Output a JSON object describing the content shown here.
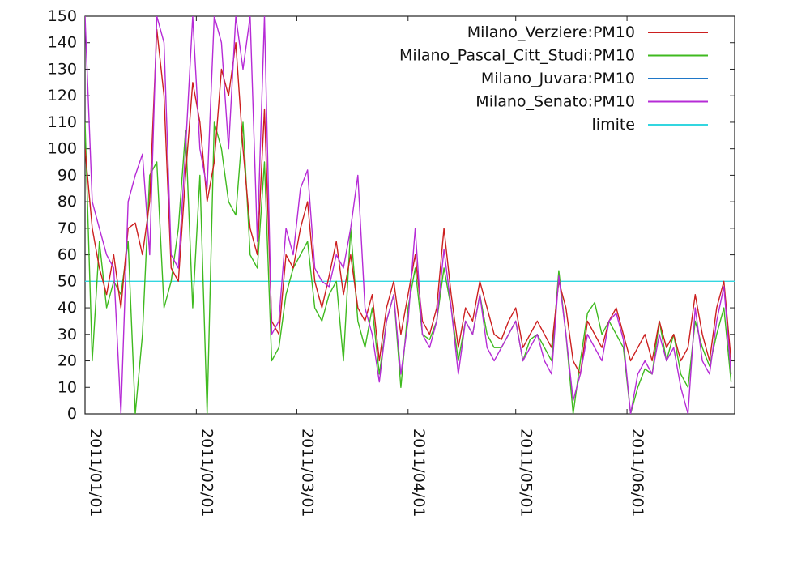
{
  "chart_data": {
    "type": "line",
    "title": "",
    "xlabel": "",
    "ylabel": "",
    "ylim": [
      0,
      150
    ],
    "xlim": [
      "2011-01-01",
      "2011-07-01"
    ],
    "yticks": [
      0,
      10,
      20,
      30,
      40,
      50,
      60,
      70,
      80,
      90,
      100,
      110,
      120,
      130,
      140,
      150
    ],
    "xticks": [
      {
        "date": "2011-01-01",
        "label": "2011/01/01"
      },
      {
        "date": "2011-02-01",
        "label": "2011/02/01"
      },
      {
        "date": "2011-03-01",
        "label": "2011/03/01"
      },
      {
        "date": "2011-04-01",
        "label": "2011/04/01"
      },
      {
        "date": "2011-05-01",
        "label": "2011/05/01"
      },
      {
        "date": "2011-06-01",
        "label": "2011/06/01"
      }
    ],
    "legend_position": "top-right",
    "grid": false,
    "series": [
      {
        "name": "Milano_Verziere:PM10",
        "color": "#cc1f1f",
        "points": [
          [
            "2011-01-01",
            100
          ],
          [
            "2011-01-03",
            70
          ],
          [
            "2011-01-05",
            55
          ],
          [
            "2011-01-07",
            45
          ],
          [
            "2011-01-09",
            60
          ],
          [
            "2011-01-11",
            40
          ],
          [
            "2011-01-13",
            70
          ],
          [
            "2011-01-15",
            72
          ],
          [
            "2011-01-17",
            60
          ],
          [
            "2011-01-19",
            80
          ],
          [
            "2011-01-21",
            145
          ],
          [
            "2011-01-23",
            120
          ],
          [
            "2011-01-25",
            55
          ],
          [
            "2011-01-27",
            50
          ],
          [
            "2011-01-29",
            90
          ],
          [
            "2011-01-31",
            125
          ],
          [
            "2011-02-02",
            110
          ],
          [
            "2011-02-04",
            80
          ],
          [
            "2011-02-06",
            95
          ],
          [
            "2011-02-08",
            130
          ],
          [
            "2011-02-10",
            120
          ],
          [
            "2011-02-12",
            140
          ],
          [
            "2011-02-14",
            100
          ],
          [
            "2011-02-16",
            70
          ],
          [
            "2011-02-18",
            60
          ],
          [
            "2011-02-20",
            115
          ],
          [
            "2011-02-22",
            35
          ],
          [
            "2011-02-24",
            30
          ],
          [
            "2011-02-26",
            60
          ],
          [
            "2011-02-28",
            55
          ],
          [
            "2011-03-02",
            70
          ],
          [
            "2011-03-04",
            80
          ],
          [
            "2011-03-06",
            50
          ],
          [
            "2011-03-08",
            40
          ],
          [
            "2011-03-10",
            52
          ],
          [
            "2011-03-12",
            65
          ],
          [
            "2011-03-14",
            45
          ],
          [
            "2011-03-16",
            60
          ],
          [
            "2011-03-18",
            40
          ],
          [
            "2011-03-20",
            35
          ],
          [
            "2011-03-22",
            45
          ],
          [
            "2011-03-24",
            20
          ],
          [
            "2011-03-26",
            40
          ],
          [
            "2011-03-28",
            50
          ],
          [
            "2011-03-30",
            30
          ],
          [
            "2011-04-01",
            45
          ],
          [
            "2011-04-03",
            60
          ],
          [
            "2011-04-05",
            35
          ],
          [
            "2011-04-07",
            30
          ],
          [
            "2011-04-09",
            40
          ],
          [
            "2011-04-11",
            70
          ],
          [
            "2011-04-13",
            45
          ],
          [
            "2011-04-15",
            25
          ],
          [
            "2011-04-17",
            40
          ],
          [
            "2011-04-19",
            35
          ],
          [
            "2011-04-21",
            50
          ],
          [
            "2011-04-23",
            40
          ],
          [
            "2011-04-25",
            30
          ],
          [
            "2011-04-27",
            28
          ],
          [
            "2011-04-29",
            35
          ],
          [
            "2011-05-01",
            40
          ],
          [
            "2011-05-03",
            25
          ],
          [
            "2011-05-05",
            30
          ],
          [
            "2011-05-07",
            35
          ],
          [
            "2011-05-09",
            30
          ],
          [
            "2011-05-11",
            25
          ],
          [
            "2011-05-13",
            50
          ],
          [
            "2011-05-15",
            40
          ],
          [
            "2011-05-17",
            20
          ],
          [
            "2011-05-19",
            15
          ],
          [
            "2011-05-21",
            35
          ],
          [
            "2011-05-23",
            30
          ],
          [
            "2011-05-25",
            25
          ],
          [
            "2011-05-27",
            35
          ],
          [
            "2011-05-29",
            40
          ],
          [
            "2011-05-31",
            30
          ],
          [
            "2011-06-02",
            20
          ],
          [
            "2011-06-04",
            25
          ],
          [
            "2011-06-06",
            30
          ],
          [
            "2011-06-08",
            20
          ],
          [
            "2011-06-10",
            35
          ],
          [
            "2011-06-12",
            25
          ],
          [
            "2011-06-14",
            30
          ],
          [
            "2011-06-16",
            20
          ],
          [
            "2011-06-18",
            25
          ],
          [
            "2011-06-20",
            45
          ],
          [
            "2011-06-22",
            30
          ],
          [
            "2011-06-24",
            20
          ],
          [
            "2011-06-26",
            40
          ],
          [
            "2011-06-28",
            50
          ],
          [
            "2011-06-30",
            20
          ]
        ]
      },
      {
        "name": "Milano_Pascal_Citt_Studi:PM10",
        "color": "#3fba1f",
        "points": [
          [
            "2011-01-01",
            110
          ],
          [
            "2011-01-03",
            20
          ],
          [
            "2011-01-05",
            65
          ],
          [
            "2011-01-07",
            40
          ],
          [
            "2011-01-09",
            50
          ],
          [
            "2011-01-11",
            45
          ],
          [
            "2011-01-13",
            65
          ],
          [
            "2011-01-15",
            0
          ],
          [
            "2011-01-17",
            30
          ],
          [
            "2011-01-19",
            90
          ],
          [
            "2011-01-21",
            95
          ],
          [
            "2011-01-23",
            40
          ],
          [
            "2011-01-25",
            50
          ],
          [
            "2011-01-27",
            70
          ],
          [
            "2011-01-29",
            107
          ],
          [
            "2011-01-31",
            40
          ],
          [
            "2011-02-02",
            90
          ],
          [
            "2011-02-04",
            0
          ],
          [
            "2011-02-06",
            110
          ],
          [
            "2011-02-08",
            100
          ],
          [
            "2011-02-10",
            80
          ],
          [
            "2011-02-12",
            75
          ],
          [
            "2011-02-14",
            110
          ],
          [
            "2011-02-16",
            60
          ],
          [
            "2011-02-18",
            55
          ],
          [
            "2011-02-20",
            95
          ],
          [
            "2011-02-22",
            20
          ],
          [
            "2011-02-24",
            25
          ],
          [
            "2011-02-26",
            45
          ],
          [
            "2011-02-28",
            55
          ],
          [
            "2011-03-02",
            60
          ],
          [
            "2011-03-04",
            65
          ],
          [
            "2011-03-06",
            40
          ],
          [
            "2011-03-08",
            35
          ],
          [
            "2011-03-10",
            45
          ],
          [
            "2011-03-12",
            50
          ],
          [
            "2011-03-14",
            20
          ],
          [
            "2011-03-16",
            70
          ],
          [
            "2011-03-18",
            35
          ],
          [
            "2011-03-20",
            25
          ],
          [
            "2011-03-22",
            40
          ],
          [
            "2011-03-24",
            15
          ],
          [
            "2011-03-26",
            35
          ],
          [
            "2011-03-28",
            45
          ],
          [
            "2011-03-30",
            10
          ],
          [
            "2011-04-01",
            40
          ],
          [
            "2011-04-03",
            55
          ],
          [
            "2011-04-05",
            30
          ],
          [
            "2011-04-07",
            28
          ],
          [
            "2011-04-09",
            35
          ],
          [
            "2011-04-11",
            55
          ],
          [
            "2011-04-13",
            40
          ],
          [
            "2011-04-15",
            20
          ],
          [
            "2011-04-17",
            35
          ],
          [
            "2011-04-19",
            30
          ],
          [
            "2011-04-21",
            45
          ],
          [
            "2011-04-23",
            30
          ],
          [
            "2011-04-25",
            25
          ],
          [
            "2011-04-27",
            25
          ],
          [
            "2011-04-29",
            30
          ],
          [
            "2011-05-01",
            35
          ],
          [
            "2011-05-03",
            20
          ],
          [
            "2011-05-05",
            28
          ],
          [
            "2011-05-07",
            30
          ],
          [
            "2011-05-09",
            25
          ],
          [
            "2011-05-11",
            20
          ],
          [
            "2011-05-13",
            54
          ],
          [
            "2011-05-15",
            30
          ],
          [
            "2011-05-17",
            0
          ],
          [
            "2011-05-19",
            20
          ],
          [
            "2011-05-21",
            38
          ],
          [
            "2011-05-23",
            42
          ],
          [
            "2011-05-25",
            30
          ],
          [
            "2011-05-27",
            35
          ],
          [
            "2011-05-29",
            30
          ],
          [
            "2011-05-31",
            25
          ],
          [
            "2011-06-02",
            0
          ],
          [
            "2011-06-04",
            10
          ],
          [
            "2011-06-06",
            17
          ],
          [
            "2011-06-08",
            15
          ],
          [
            "2011-06-10",
            35
          ],
          [
            "2011-06-12",
            20
          ],
          [
            "2011-06-14",
            30
          ],
          [
            "2011-06-16",
            15
          ],
          [
            "2011-06-18",
            10
          ],
          [
            "2011-06-20",
            35
          ],
          [
            "2011-06-22",
            25
          ],
          [
            "2011-06-24",
            18
          ],
          [
            "2011-06-26",
            30
          ],
          [
            "2011-06-28",
            40
          ],
          [
            "2011-06-30",
            12
          ]
        ]
      },
      {
        "name": "Milano_Juvara:PM10",
        "color": "#1f77c8",
        "points": []
      },
      {
        "name": "Milano_Senato:PM10",
        "color": "#b62bd6",
        "points": [
          [
            "2011-01-01",
            150
          ],
          [
            "2011-01-03",
            80
          ],
          [
            "2011-01-05",
            70
          ],
          [
            "2011-01-07",
            60
          ],
          [
            "2011-01-09",
            55
          ],
          [
            "2011-01-11",
            0
          ],
          [
            "2011-01-13",
            80
          ],
          [
            "2011-01-15",
            90
          ],
          [
            "2011-01-17",
            98
          ],
          [
            "2011-01-19",
            60
          ],
          [
            "2011-01-21",
            150
          ],
          [
            "2011-01-23",
            140
          ],
          [
            "2011-01-25",
            60
          ],
          [
            "2011-01-27",
            55
          ],
          [
            "2011-01-29",
            100
          ],
          [
            "2011-01-31",
            150
          ],
          [
            "2011-02-02",
            100
          ],
          [
            "2011-02-04",
            85
          ],
          [
            "2011-02-06",
            150
          ],
          [
            "2011-02-08",
            140
          ],
          [
            "2011-02-10",
            100
          ],
          [
            "2011-02-12",
            150
          ],
          [
            "2011-02-14",
            130
          ],
          [
            "2011-02-16",
            150
          ],
          [
            "2011-02-18",
            65
          ],
          [
            "2011-02-20",
            150
          ],
          [
            "2011-02-22",
            30
          ],
          [
            "2011-02-24",
            35
          ],
          [
            "2011-02-26",
            70
          ],
          [
            "2011-02-28",
            60
          ],
          [
            "2011-03-02",
            85
          ],
          [
            "2011-03-04",
            92
          ],
          [
            "2011-03-06",
            55
          ],
          [
            "2011-03-08",
            50
          ],
          [
            "2011-03-10",
            48
          ],
          [
            "2011-03-12",
            60
          ],
          [
            "2011-03-14",
            55
          ],
          [
            "2011-03-16",
            70
          ],
          [
            "2011-03-18",
            90
          ],
          [
            "2011-03-20",
            40
          ],
          [
            "2011-03-22",
            30
          ],
          [
            "2011-03-24",
            12
          ],
          [
            "2011-03-26",
            35
          ],
          [
            "2011-03-28",
            45
          ],
          [
            "2011-03-30",
            15
          ],
          [
            "2011-04-01",
            35
          ],
          [
            "2011-04-03",
            70
          ],
          [
            "2011-04-05",
            30
          ],
          [
            "2011-04-07",
            25
          ],
          [
            "2011-04-09",
            35
          ],
          [
            "2011-04-11",
            62
          ],
          [
            "2011-04-13",
            40
          ],
          [
            "2011-04-15",
            15
          ],
          [
            "2011-04-17",
            35
          ],
          [
            "2011-04-19",
            30
          ],
          [
            "2011-04-21",
            45
          ],
          [
            "2011-04-23",
            25
          ],
          [
            "2011-04-25",
            20
          ],
          [
            "2011-04-27",
            25
          ],
          [
            "2011-04-29",
            30
          ],
          [
            "2011-05-01",
            35
          ],
          [
            "2011-05-03",
            20
          ],
          [
            "2011-05-05",
            25
          ],
          [
            "2011-05-07",
            30
          ],
          [
            "2011-05-09",
            20
          ],
          [
            "2011-05-11",
            15
          ],
          [
            "2011-05-13",
            52
          ],
          [
            "2011-05-15",
            30
          ],
          [
            "2011-05-17",
            5
          ],
          [
            "2011-05-19",
            15
          ],
          [
            "2011-05-21",
            30
          ],
          [
            "2011-05-23",
            25
          ],
          [
            "2011-05-25",
            20
          ],
          [
            "2011-05-27",
            35
          ],
          [
            "2011-05-29",
            38
          ],
          [
            "2011-05-31",
            28
          ],
          [
            "2011-06-02",
            0
          ],
          [
            "2011-06-04",
            15
          ],
          [
            "2011-06-06",
            20
          ],
          [
            "2011-06-08",
            15
          ],
          [
            "2011-06-10",
            30
          ],
          [
            "2011-06-12",
            20
          ],
          [
            "2011-06-14",
            25
          ],
          [
            "2011-06-16",
            10
          ],
          [
            "2011-06-18",
            0
          ],
          [
            "2011-06-20",
            40
          ],
          [
            "2011-06-22",
            20
          ],
          [
            "2011-06-24",
            15
          ],
          [
            "2011-06-26",
            35
          ],
          [
            "2011-06-28",
            48
          ],
          [
            "2011-06-30",
            15
          ]
        ]
      },
      {
        "name": "limite",
        "color": "#33d6e0",
        "points": [
          [
            "2011-01-01",
            50
          ],
          [
            "2011-07-01",
            50
          ]
        ]
      }
    ]
  }
}
